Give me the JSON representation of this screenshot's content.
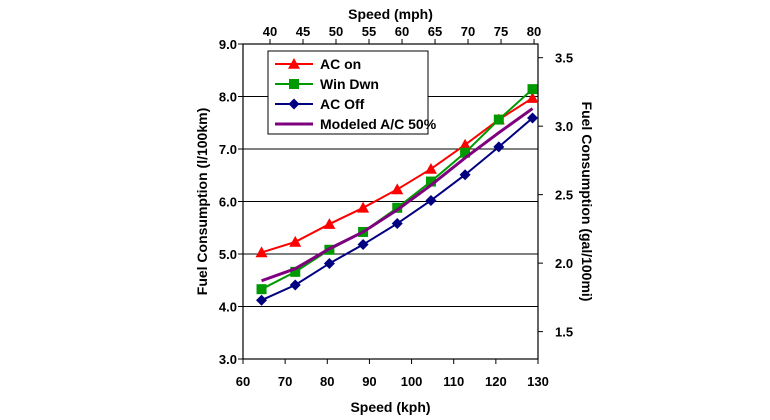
{
  "chart_data": {
    "type": "line",
    "xlabel": "Speed (kph)",
    "x2label": "Speed (mph)",
    "ylabel": "Fuel Consumption (l/100km)",
    "y2label": "Fuel Consumption (gal/100mi)",
    "xlim": [
      60,
      130
    ],
    "ylim": [
      3.0,
      9.0
    ],
    "y2lim": [
      1.3,
      3.6
    ],
    "x_ticks": [
      "60",
      "70",
      "80",
      "90",
      "100",
      "110",
      "120",
      "130"
    ],
    "y_ticks": [
      "3.0",
      "4.0",
      "5.0",
      "6.0",
      "7.0",
      "8.0",
      "9.0"
    ],
    "x2_ticks": [
      "40",
      "45",
      "50",
      "55",
      "60",
      "65",
      "70",
      "75",
      "80"
    ],
    "y2_ticks": [
      "1.5",
      "2.0",
      "2.5",
      "3.0",
      "3.5"
    ],
    "grid": "horizontal",
    "legend_position": "top-left",
    "series": [
      {
        "name": "AC on",
        "color": "#ff0000",
        "marker": "triangle",
        "x": [
          64.4,
          72.4,
          80.5,
          88.5,
          96.6,
          104.6,
          112.7,
          120.7,
          128.7
        ],
        "values": [
          5.03,
          5.23,
          5.57,
          5.88,
          6.23,
          6.62,
          7.08,
          7.56,
          7.97
        ]
      },
      {
        "name": "Win Dwn",
        "color": "#009900",
        "marker": "square",
        "x": [
          64.4,
          72.4,
          80.5,
          88.5,
          96.6,
          104.6,
          112.7,
          120.7,
          128.7
        ],
        "values": [
          4.33,
          4.66,
          5.08,
          5.42,
          5.88,
          6.38,
          6.93,
          7.56,
          8.14
        ]
      },
      {
        "name": "AC Off",
        "color": "#000080",
        "marker": "diamond",
        "x": [
          64.4,
          72.4,
          80.5,
          88.5,
          96.6,
          104.6,
          112.7,
          120.7,
          128.7
        ],
        "values": [
          4.12,
          4.41,
          4.82,
          5.18,
          5.58,
          6.02,
          6.51,
          7.04,
          7.59
        ]
      },
      {
        "name": "Modeled A/C 50%",
        "color": "#7f007f",
        "marker": "none",
        "x": [
          64.4,
          72.4,
          80.5,
          88.5,
          96.6,
          104.6,
          112.7,
          120.7,
          128.7
        ],
        "values": [
          4.49,
          4.72,
          5.1,
          5.42,
          5.84,
          6.31,
          6.83,
          7.31,
          7.77
        ]
      }
    ]
  }
}
